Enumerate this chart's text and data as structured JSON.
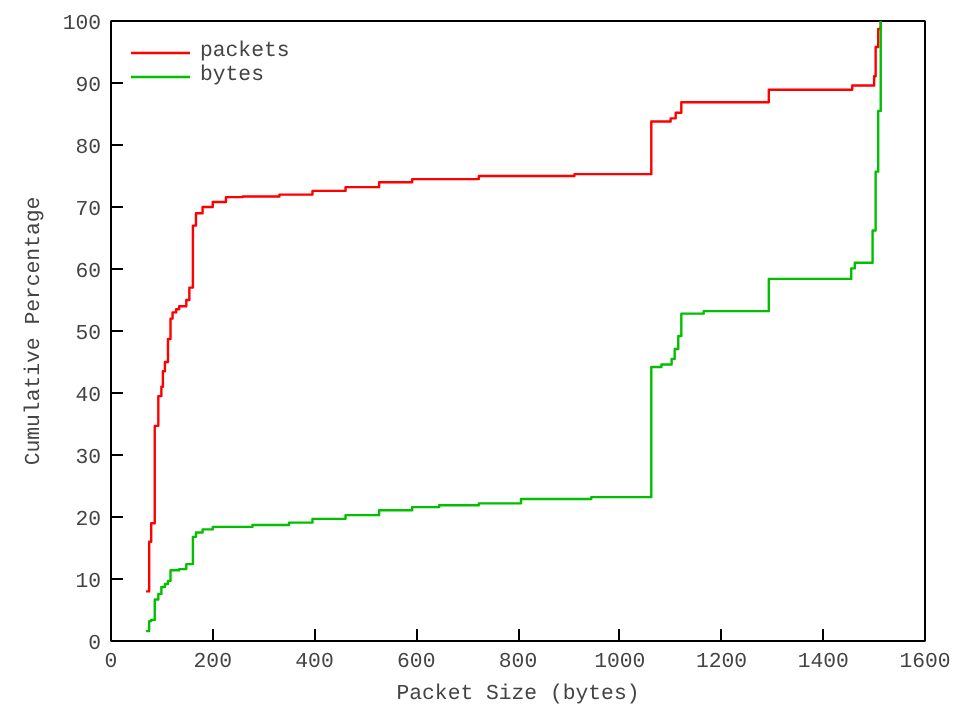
{
  "chart_data": {
    "type": "step",
    "xlabel": "Packet Size (bytes)",
    "ylabel": "Cumulative Percentage",
    "xlim": [
      0,
      1600
    ],
    "ylim": [
      0,
      100
    ],
    "xticks": [
      0,
      200,
      400,
      600,
      800,
      1000,
      1200,
      1400,
      1600
    ],
    "yticks": [
      0,
      10,
      20,
      30,
      40,
      50,
      60,
      70,
      80,
      90,
      100
    ],
    "grid": false,
    "legend": "top left",
    "series": [
      {
        "name": "packets",
        "color": "#ff0000",
        "x": [
          69,
          75,
          79,
          86,
          93,
          99,
          102,
          106,
          112,
          117,
          121,
          128,
          134,
          148,
          154,
          161,
          167,
          180,
          200,
          226,
          259,
          331,
          396,
          461,
          527,
          592,
          723,
          911,
          1062,
          1100,
          1110,
          1121,
          1293,
          1457,
          1500,
          1503,
          1508,
          1513
        ],
        "values": [
          8,
          16,
          19,
          34.7,
          39.5,
          41,
          43.5,
          45,
          48.7,
          52,
          53,
          53.5,
          54,
          55,
          57,
          67,
          69,
          70,
          70.8,
          71.6,
          71.7,
          72,
          72.6,
          73.2,
          74,
          74.5,
          75,
          75.3,
          83.8,
          84.3,
          85.2,
          86.9,
          88.9,
          89.6,
          91.1,
          95.8,
          98.7,
          100
        ]
      },
      {
        "name": "bytes",
        "color": "#00c000",
        "x": [
          69,
          75,
          79,
          86,
          93,
          99,
          106,
          112,
          117,
          134,
          148,
          161,
          167,
          180,
          200,
          278,
          350,
          396,
          461,
          527,
          592,
          645,
          723,
          806,
          944,
          1062,
          1082,
          1102,
          1108,
          1115,
          1121,
          1165,
          1293,
          1455,
          1462,
          1497,
          1503,
          1508,
          1513
        ],
        "values": [
          1.6,
          3.2,
          3.4,
          6.7,
          7.6,
          8.7,
          9.2,
          9.7,
          11.4,
          11.6,
          12.4,
          16.8,
          17.5,
          18,
          18.4,
          18.7,
          19.1,
          19.7,
          20.3,
          21.1,
          21.6,
          21.9,
          22.2,
          22.9,
          23.2,
          44.2,
          44.6,
          45.5,
          47.1,
          49.2,
          52.8,
          53.2,
          58.4,
          60.1,
          61,
          66.2,
          75.7,
          85.5,
          100
        ]
      }
    ]
  }
}
